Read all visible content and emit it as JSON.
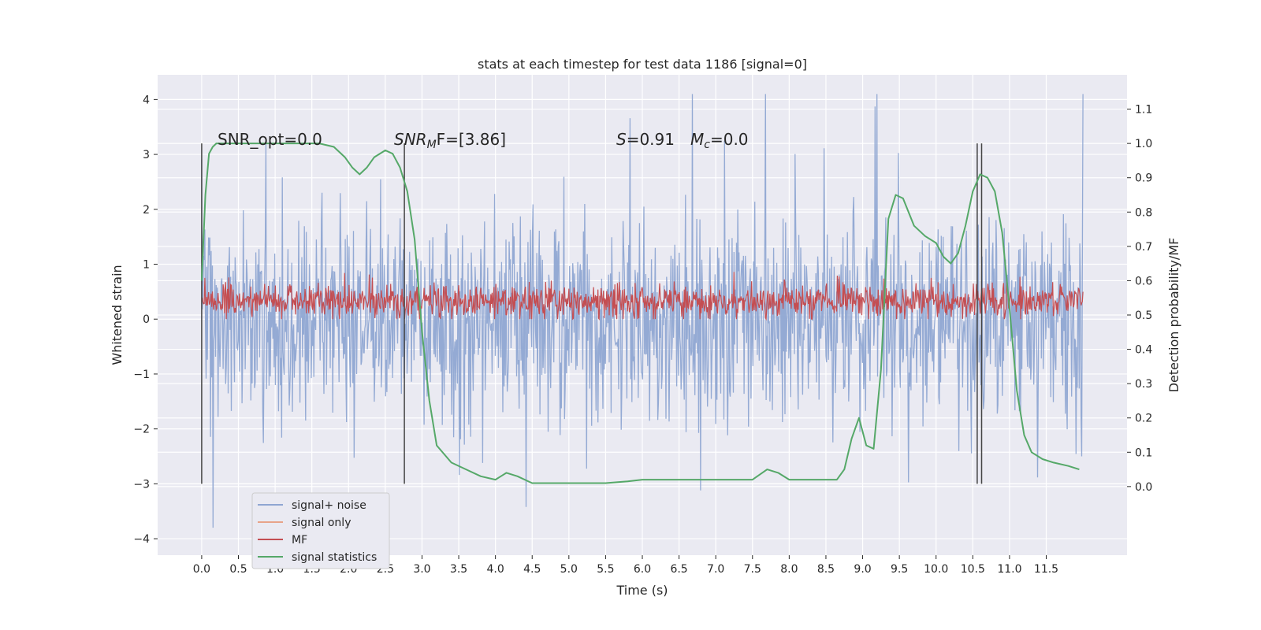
{
  "chart_data": {
    "type": "line",
    "title": "stats at each timestep for test data 1186 [signal=0]",
    "xlabel": "Time (s)",
    "ylabel": "Whitened strain",
    "y2label": "Detection probability/MF",
    "xlim": [
      -0.6,
      12.6
    ],
    "ylim": [
      -4.3,
      4.45
    ],
    "y2lim": [
      -0.2,
      1.2
    ],
    "x_ticks": [
      "0.0",
      "0.5",
      "1.0",
      "1.5",
      "2.0",
      "2.5",
      "3.0",
      "3.5",
      "4.0",
      "4.5",
      "5.0",
      "5.5",
      "6.0",
      "6.5",
      "7.0",
      "7.5",
      "8.0",
      "8.5",
      "9.0",
      "9.5",
      "10.0",
      "10.5",
      "11.0",
      "11.5"
    ],
    "y_ticks": [
      "4",
      "3",
      "2",
      "1",
      "0",
      "−1",
      "−2",
      "−3",
      "−4"
    ],
    "y2_ticks": [
      "1.1",
      "1.0",
      "0.9",
      "0.8",
      "0.7",
      "0.6",
      "0.5",
      "0.4",
      "0.3",
      "0.2",
      "0.1",
      "0.0"
    ],
    "grid": true,
    "background": "#eaeaf2",
    "annotations": {
      "snr_opt": "SNR_opt=0.0",
      "snr_mf_main": "SNR",
      "snr_mf_sub": "M",
      "snr_mf_rest": "F=[3.86]",
      "s_sym": "S",
      "s_val": "=0.91",
      "mc_sym": "M",
      "mc_sub": "c",
      "mc_val": "=0.0"
    },
    "vertical_markers": [
      0.0,
      2.76,
      10.56,
      10.62
    ],
    "legend": {
      "position": "lower-left",
      "entries": [
        {
          "name": "signal+ noise",
          "color": "#8fa6d2"
        },
        {
          "name": "signal only",
          "color": "#e8a389"
        },
        {
          "name": "MF",
          "color": "#c44e52"
        },
        {
          "name": "signal statistics",
          "color": "#55a868"
        }
      ]
    },
    "series": [
      {
        "name": "signal+ noise",
        "color": "#8fa6d2",
        "x_range": [
          0.0,
          12.0
        ],
        "typical_envelope": [
          -1.6,
          1.6
        ],
        "peak_range": [
          -3.8,
          4.1
        ]
      },
      {
        "name": "MF",
        "color": "#c44e52",
        "x_range": [
          0.0,
          12.0
        ],
        "typical_band": [
          0.05,
          0.65
        ],
        "peak_range": [
          0.0,
          0.95
        ]
      },
      {
        "name": "signal statistics",
        "color": "#55a868",
        "axis": "right",
        "x": [
          0.0,
          0.05,
          0.1,
          0.15,
          0.2,
          0.3,
          0.5,
          0.8,
          1.0,
          1.3,
          1.6,
          1.8,
          1.95,
          2.05,
          2.15,
          2.25,
          2.35,
          2.5,
          2.6,
          2.7,
          2.8,
          2.9,
          3.0,
          3.1,
          3.2,
          3.4,
          3.6,
          3.8,
          4.0,
          4.15,
          4.3,
          4.5,
          5.0,
          5.5,
          5.8,
          6.0,
          6.3,
          6.6,
          7.0,
          7.3,
          7.5,
          7.7,
          7.85,
          8.0,
          8.3,
          8.5,
          8.65,
          8.75,
          8.85,
          8.95,
          9.05,
          9.15,
          9.25,
          9.35,
          9.45,
          9.55,
          9.7,
          9.85,
          10.0,
          10.1,
          10.2,
          10.3,
          10.4,
          10.5,
          10.6,
          10.7,
          10.8,
          10.9,
          11.0,
          11.1,
          11.2,
          11.3,
          11.45,
          11.6,
          11.8,
          11.95
        ],
        "y": [
          0.6,
          0.85,
          0.97,
          0.99,
          1.0,
          1.0,
          1.0,
          1.0,
          1.0,
          1.0,
          1.0,
          0.99,
          0.96,
          0.93,
          0.91,
          0.93,
          0.96,
          0.98,
          0.97,
          0.93,
          0.86,
          0.72,
          0.45,
          0.25,
          0.12,
          0.07,
          0.05,
          0.03,
          0.02,
          0.04,
          0.03,
          0.01,
          0.01,
          0.01,
          0.015,
          0.02,
          0.02,
          0.02,
          0.02,
          0.02,
          0.02,
          0.05,
          0.04,
          0.02,
          0.02,
          0.02,
          0.02,
          0.05,
          0.14,
          0.2,
          0.12,
          0.11,
          0.34,
          0.78,
          0.85,
          0.84,
          0.76,
          0.73,
          0.71,
          0.67,
          0.65,
          0.68,
          0.76,
          0.86,
          0.91,
          0.9,
          0.86,
          0.74,
          0.52,
          0.28,
          0.15,
          0.1,
          0.08,
          0.07,
          0.06,
          0.05
        ]
      }
    ]
  }
}
